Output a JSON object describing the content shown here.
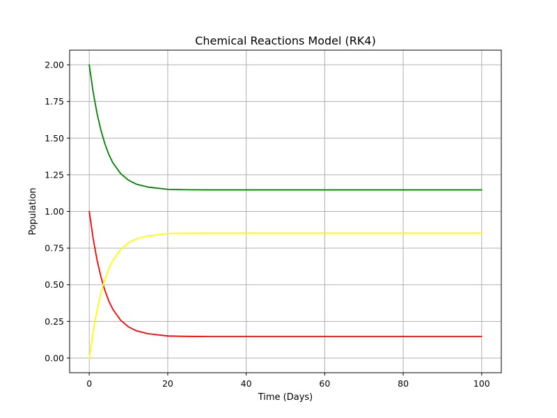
{
  "chart_data": {
    "type": "line",
    "title": "Chemical Reactions Model (RK4)",
    "xlabel": "Time (Days)",
    "ylabel": "Population",
    "xlim": [
      -5,
      105
    ],
    "ylim": [
      -0.1,
      2.1
    ],
    "xticks": [
      0,
      20,
      40,
      60,
      80,
      100
    ],
    "xtick_labels": [
      "0",
      "20",
      "40",
      "60",
      "80",
      "100"
    ],
    "yticks": [
      0,
      0.25,
      0.5,
      0.75,
      1.0,
      1.25,
      1.5,
      1.75,
      2.0
    ],
    "ytick_labels": [
      "0.00",
      "0.25",
      "0.50",
      "0.75",
      "1.00",
      "1.25",
      "1.50",
      "1.75",
      "2.00"
    ],
    "grid": true,
    "x": [
      0,
      1,
      2,
      3,
      4,
      5,
      6,
      8,
      10,
      12,
      15,
      20,
      25,
      30,
      40,
      50,
      60,
      70,
      80,
      90,
      100
    ],
    "series": [
      {
        "color": "#ff0000",
        "values": [
          1.0,
          0.813,
          0.666,
          0.551,
          0.46,
          0.388,
          0.333,
          0.258,
          0.213,
          0.186,
          0.166,
          0.151,
          0.148,
          0.147,
          0.147,
          0.147,
          0.147,
          0.147,
          0.147,
          0.147,
          0.147
        ]
      },
      {
        "color": "#ffff00",
        "values": [
          0.0,
          0.187,
          0.334,
          0.449,
          0.54,
          0.612,
          0.667,
          0.742,
          0.787,
          0.814,
          0.834,
          0.849,
          0.852,
          0.853,
          0.853,
          0.853,
          0.853,
          0.853,
          0.853,
          0.853,
          0.853
        ]
      },
      {
        "color": "#008000",
        "values": [
          2.0,
          1.813,
          1.666,
          1.551,
          1.46,
          1.388,
          1.333,
          1.258,
          1.213,
          1.186,
          1.166,
          1.151,
          1.148,
          1.147,
          1.147,
          1.147,
          1.147,
          1.147,
          1.147,
          1.147,
          1.147
        ]
      }
    ]
  }
}
